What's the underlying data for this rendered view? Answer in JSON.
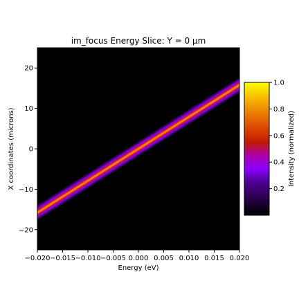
{
  "chart_data": {
    "type": "heatmap",
    "title": "im_focus Energy Slice: Y = 0 µm",
    "xlabel": "Energy (eV)",
    "ylabel": "X coordinates (microns)",
    "xlim": [
      -0.02,
      0.02
    ],
    "ylim": [
      -25,
      25
    ],
    "x_ticks": [
      "−0.020",
      "−0.015",
      "−0.010",
      "−0.005",
      "0.000",
      "0.005",
      "0.010",
      "0.015",
      "0.020"
    ],
    "x_tick_values": [
      -0.02,
      -0.015,
      -0.01,
      -0.005,
      0.0,
      0.005,
      0.01,
      0.015,
      0.02
    ],
    "y_ticks": [
      "20",
      "10",
      "0",
      "−10",
      "−20"
    ],
    "y_tick_values": [
      20,
      10,
      0,
      -10,
      -20
    ],
    "ridge": {
      "start": {
        "energy": -0.02,
        "x": -15.8
      },
      "end": {
        "energy": 0.02,
        "x": 15.8
      },
      "width_microns": 1.6,
      "peak_intensity": 1.0
    },
    "background_intensity": 0.0,
    "colormap": "gnuplot",
    "colorbar": {
      "label": "Intensity (normalized)",
      "range": [
        0.0,
        1.0
      ],
      "ticks": [
        "0.2",
        "0.4",
        "0.6",
        "0.8",
        "1.0"
      ],
      "tick_values": [
        0.2,
        0.4,
        0.6,
        0.8,
        1.0
      ]
    }
  }
}
